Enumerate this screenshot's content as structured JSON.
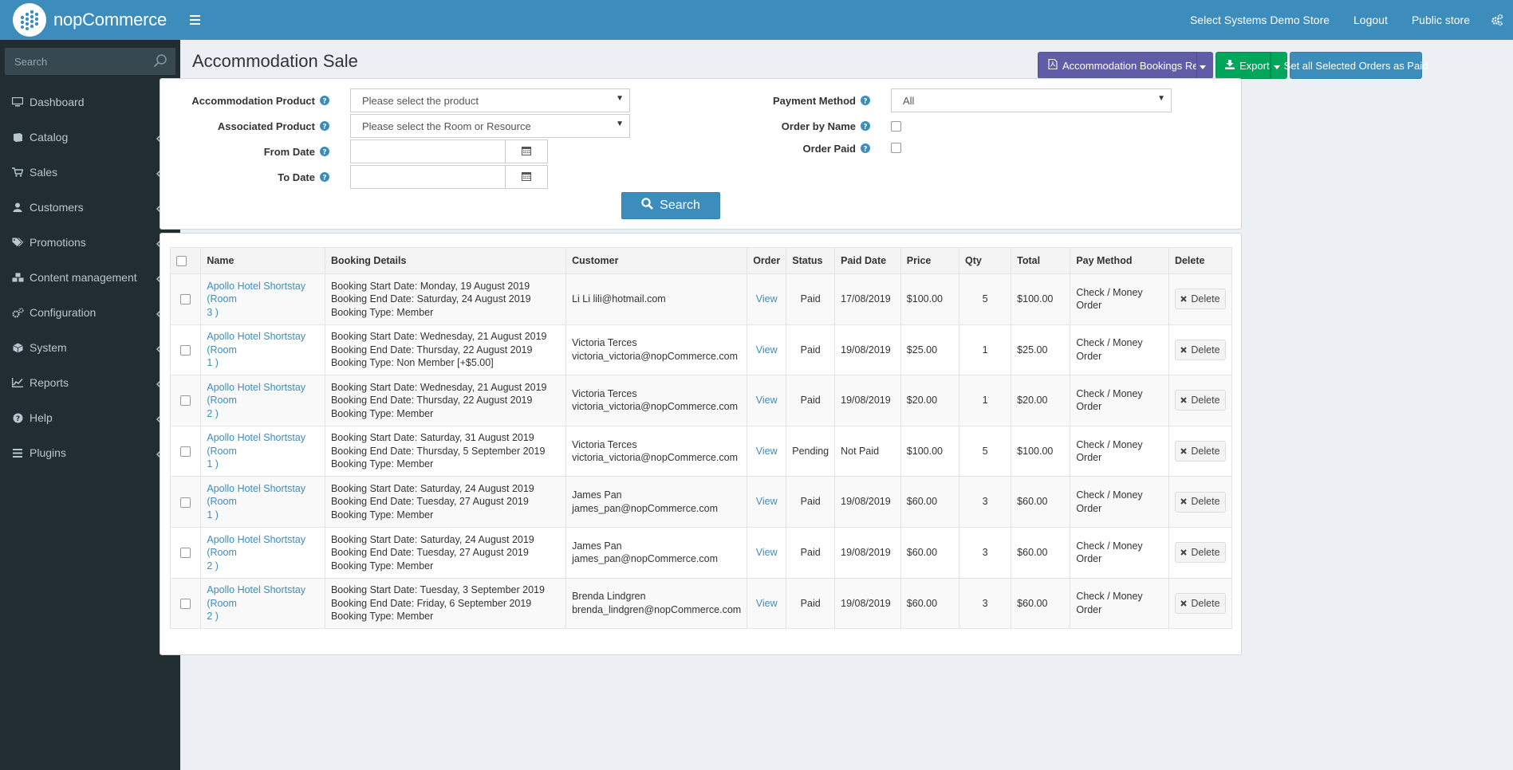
{
  "header": {
    "brand": "nopCommerce",
    "nav": {
      "store_name": "Select Systems Demo Store",
      "logout": "Logout",
      "public_store": "Public store"
    }
  },
  "sidebar": {
    "search_placeholder": "Search",
    "items": [
      {
        "label": "Dashboard",
        "icon": "desktop-icon"
      },
      {
        "label": "Catalog",
        "icon": "book-icon"
      },
      {
        "label": "Sales",
        "icon": "cart-icon"
      },
      {
        "label": "Customers",
        "icon": "user-icon"
      },
      {
        "label": "Promotions",
        "icon": "tags-icon"
      },
      {
        "label": "Content management",
        "icon": "cubes-icon"
      },
      {
        "label": "Configuration",
        "icon": "cogs-icon"
      },
      {
        "label": "System",
        "icon": "cube-icon"
      },
      {
        "label": "Reports",
        "icon": "line-chart-icon"
      },
      {
        "label": "Help",
        "icon": "question-circle-icon"
      },
      {
        "label": "Plugins",
        "icon": "bars-icon"
      }
    ]
  },
  "page": {
    "title": "Accommodation Sale",
    "buttons": {
      "report": "Accommodation Bookings Report",
      "export": "Export",
      "set_paid": "Set all Selected Orders as Paid"
    }
  },
  "search": {
    "accommodation_product": {
      "label": "Accommodation Product",
      "value": "Please select the product"
    },
    "associated_product": {
      "label": "Associated Product",
      "value": "Please select the Room or Resource"
    },
    "from_date": {
      "label": "From Date",
      "value": ""
    },
    "to_date": {
      "label": "To Date",
      "value": ""
    },
    "payment_method": {
      "label": "Payment Method",
      "value": "All"
    },
    "order_by_name": {
      "label": "Order by Name"
    },
    "order_paid": {
      "label": "Order Paid"
    },
    "search_button": "Search"
  },
  "table": {
    "headers": [
      "Name",
      "Booking Details",
      "Customer",
      "Order",
      "Status",
      "Paid Date",
      "Price",
      "Qty",
      "Total",
      "Pay Method",
      "Delete"
    ],
    "rows": [
      {
        "name1": "Apollo Hotel Shortstay (Room",
        "name2": "3 )",
        "d1": "Booking Start Date: Monday, 19 August 2019",
        "d2": "Booking End Date: Saturday, 24 August 2019",
        "d3": "Booking Type: Member",
        "c1": "Li Li lili@hotmail.com",
        "c2": "",
        "order": "View",
        "status": "Paid",
        "paid_date": "17/08/2019",
        "price": "$100.00",
        "qty": "5",
        "total": "$100.00",
        "pay_method": "Check / Money Order",
        "delete": "Delete"
      },
      {
        "name1": "Apollo Hotel Shortstay (Room",
        "name2": "1 )",
        "d1": "Booking Start Date: Wednesday, 21 August 2019",
        "d2": "Booking End Date: Thursday, 22 August 2019",
        "d3": "Booking Type: Non Member [+$5.00]",
        "c1": "Victoria Terces",
        "c2": "victoria_victoria@nopCommerce.com",
        "order": "View",
        "status": "Paid",
        "paid_date": "19/08/2019",
        "price": "$25.00",
        "qty": "1",
        "total": "$25.00",
        "pay_method": "Check / Money Order",
        "delete": "Delete"
      },
      {
        "name1": "Apollo Hotel Shortstay (Room",
        "name2": "2 )",
        "d1": "Booking Start Date: Wednesday, 21 August 2019",
        "d2": "Booking End Date: Thursday, 22 August 2019",
        "d3": "Booking Type: Member",
        "c1": "Victoria Terces",
        "c2": "victoria_victoria@nopCommerce.com",
        "order": "View",
        "status": "Paid",
        "paid_date": "19/08/2019",
        "price": "$20.00",
        "qty": "1",
        "total": "$20.00",
        "pay_method": "Check / Money Order",
        "delete": "Delete"
      },
      {
        "name1": "Apollo Hotel Shortstay (Room",
        "name2": "1 )",
        "d1": "Booking Start Date: Saturday, 31 August 2019",
        "d2": "Booking End Date: Thursday, 5 September 2019",
        "d3": "Booking Type: Member",
        "c1": "Victoria Terces",
        "c2": "victoria_victoria@nopCommerce.com",
        "order": "View",
        "status": "Pending",
        "paid_date": "Not Paid",
        "price": "$100.00",
        "qty": "5",
        "total": "$100.00",
        "pay_method": "Check / Money Order",
        "delete": "Delete"
      },
      {
        "name1": "Apollo Hotel Shortstay (Room",
        "name2": "1 )",
        "d1": "Booking Start Date: Saturday, 24 August 2019",
        "d2": "Booking End Date: Tuesday, 27 August 2019",
        "d3": "Booking Type: Member",
        "c1": "James Pan",
        "c2": "james_pan@nopCommerce.com",
        "order": "View",
        "status": "Paid",
        "paid_date": "19/08/2019",
        "price": "$60.00",
        "qty": "3",
        "total": "$60.00",
        "pay_method": "Check / Money Order",
        "delete": "Delete"
      },
      {
        "name1": "Apollo Hotel Shortstay (Room",
        "name2": "2 )",
        "d1": "Booking Start Date: Saturday, 24 August 2019",
        "d2": "Booking End Date: Tuesday, 27 August 2019",
        "d3": "Booking Type: Member",
        "c1": "James Pan",
        "c2": "james_pan@nopCommerce.com",
        "order": "View",
        "status": "Paid",
        "paid_date": "19/08/2019",
        "price": "$60.00",
        "qty": "3",
        "total": "$60.00",
        "pay_method": "Check / Money Order",
        "delete": "Delete"
      },
      {
        "name1": "Apollo Hotel Shortstay (Room",
        "name2": "2 )",
        "d1": "Booking Start Date: Tuesday, 3 September 2019",
        "d2": "Booking End Date: Friday, 6 September 2019",
        "d3": "Booking Type: Member",
        "c1": "Brenda Lindgren",
        "c2": "brenda_lindgren@nopCommerce.com",
        "order": "View",
        "status": "Paid",
        "paid_date": "19/08/2019",
        "price": "$60.00",
        "qty": "3",
        "total": "$60.00",
        "pay_method": "Check / Money Order",
        "delete": "Delete"
      }
    ]
  }
}
